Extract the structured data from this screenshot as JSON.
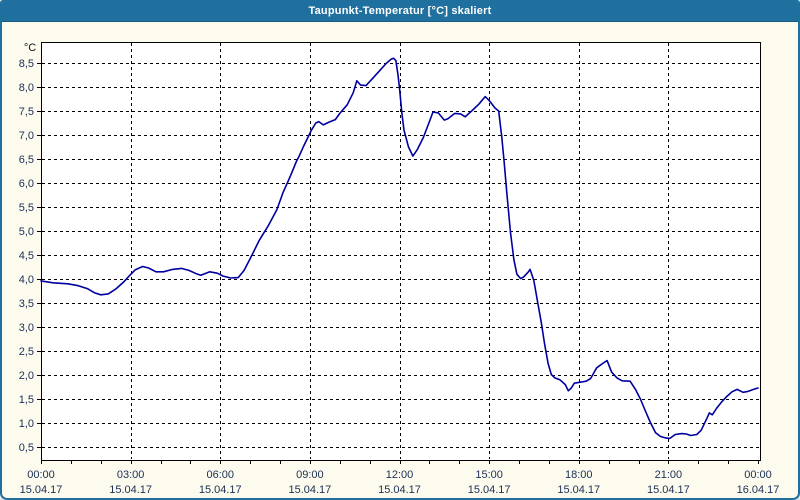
{
  "window": {
    "title": "Taupunkt-Temperatur [°C] skaliert"
  },
  "colors": {
    "titlebar_bg": "#20709F",
    "window_frame": "#1F6F9F",
    "window_bg": "#FCFBEE",
    "plot_bg": "#FFFFFF",
    "plot_border": "#000000",
    "grid": "#000000",
    "axis_text": "#1A2F55",
    "line": "#0000A0"
  },
  "chart_data": {
    "type": "line",
    "title": "Taupunkt-Temperatur [°C] skaliert",
    "ylabel": "°C",
    "grid": {
      "style": "dashed",
      "horizontal_every": 0.5,
      "vertical_every_hours": 3
    },
    "y_axis": {
      "min": 0.5,
      "max": 8.5,
      "step": 0.5,
      "decimal_separator": ",",
      "tick_labels": [
        "8,5",
        "8,0",
        "7,5",
        "7,0",
        "6,5",
        "6,0",
        "5,5",
        "5,0",
        "4,5",
        "4,0",
        "3,5",
        "3,0",
        "2,5",
        "2,0",
        "1,5",
        "1,0",
        "0,5"
      ]
    },
    "x_axis": {
      "span_hours": 24,
      "minor_tick_hours": 1,
      "major_tick_hours": 3,
      "ticks": [
        {
          "time": "00:00",
          "date": "15.04.17"
        },
        {
          "time": "03:00",
          "date": "15.04.17"
        },
        {
          "time": "06:00",
          "date": "15.04.17"
        },
        {
          "time": "09:00",
          "date": "15.04.17"
        },
        {
          "time": "12:00",
          "date": "15.04.17"
        },
        {
          "time": "15:00",
          "date": "15.04.17"
        },
        {
          "time": "18:00",
          "date": "15.04.17"
        },
        {
          "time": "21:00",
          "date": "15.04.17"
        },
        {
          "time": "00:00",
          "date": "16.04.17"
        }
      ]
    },
    "series": [
      {
        "name": "Taupunkt-Temperatur",
        "color": "#0000A0",
        "points_hour_value": [
          [
            0,
            3.96
          ],
          [
            0.4,
            3.92
          ],
          [
            0.9,
            3.9
          ],
          [
            1.25,
            3.86
          ],
          [
            1.55,
            3.8
          ],
          [
            1.8,
            3.71
          ],
          [
            2,
            3.67
          ],
          [
            2.25,
            3.69
          ],
          [
            2.5,
            3.79
          ],
          [
            2.75,
            3.93
          ],
          [
            2.95,
            4.06
          ],
          [
            3.15,
            4.19
          ],
          [
            3.4,
            4.26
          ],
          [
            3.6,
            4.23
          ],
          [
            3.85,
            4.15
          ],
          [
            4.1,
            4.15
          ],
          [
            4.4,
            4.2
          ],
          [
            4.7,
            4.22
          ],
          [
            4.95,
            4.18
          ],
          [
            5.2,
            4.11
          ],
          [
            5.35,
            4.08
          ],
          [
            5.65,
            4.15
          ],
          [
            5.9,
            4.12
          ],
          [
            6.1,
            4.06
          ],
          [
            6.35,
            4.02
          ],
          [
            6.6,
            4.03
          ],
          [
            6.8,
            4.18
          ],
          [
            7,
            4.42
          ],
          [
            7.3,
            4.8
          ],
          [
            7.6,
            5.1
          ],
          [
            7.9,
            5.45
          ],
          [
            8.1,
            5.8
          ],
          [
            8.35,
            6.15
          ],
          [
            8.55,
            6.45
          ],
          [
            8.65,
            6.57
          ],
          [
            8.8,
            6.78
          ],
          [
            8.95,
            6.97
          ],
          [
            9.05,
            7.1
          ],
          [
            9.2,
            7.25
          ],
          [
            9.3,
            7.28
          ],
          [
            9.45,
            7.21
          ],
          [
            9.65,
            7.27
          ],
          [
            9.85,
            7.32
          ],
          [
            10,
            7.45
          ],
          [
            10.25,
            7.63
          ],
          [
            10.45,
            7.88
          ],
          [
            10.57,
            8.13
          ],
          [
            10.7,
            8.04
          ],
          [
            10.88,
            8.03
          ],
          [
            11.1,
            8.18
          ],
          [
            11.35,
            8.35
          ],
          [
            11.55,
            8.49
          ],
          [
            11.72,
            8.58
          ],
          [
            11.8,
            8.6
          ],
          [
            11.88,
            8.55
          ],
          [
            11.95,
            8.25
          ],
          [
            12,
            7.98
          ],
          [
            12.08,
            7.45
          ],
          [
            12.15,
            7.1
          ],
          [
            12.3,
            6.75
          ],
          [
            12.45,
            6.56
          ],
          [
            12.6,
            6.7
          ],
          [
            12.8,
            6.95
          ],
          [
            13,
            7.28
          ],
          [
            13.12,
            7.48
          ],
          [
            13.3,
            7.46
          ],
          [
            13.5,
            7.31
          ],
          [
            13.62,
            7.34
          ],
          [
            13.85,
            7.45
          ],
          [
            14.05,
            7.44
          ],
          [
            14.2,
            7.38
          ],
          [
            14.45,
            7.52
          ],
          [
            14.65,
            7.64
          ],
          [
            14.87,
            7.8
          ],
          [
            15,
            7.72
          ],
          [
            15.1,
            7.64
          ],
          [
            15.2,
            7.56
          ],
          [
            15.32,
            7.5
          ],
          [
            15.42,
            6.97
          ],
          [
            15.5,
            6.45
          ],
          [
            15.6,
            5.75
          ],
          [
            15.72,
            4.95
          ],
          [
            15.83,
            4.4
          ],
          [
            15.93,
            4.1
          ],
          [
            16.05,
            4.01
          ],
          [
            16.15,
            4.04
          ],
          [
            16.3,
            4.14
          ],
          [
            16.37,
            4.2
          ],
          [
            16.5,
            3.96
          ],
          [
            16.63,
            3.5
          ],
          [
            16.75,
            3.08
          ],
          [
            16.85,
            2.67
          ],
          [
            16.97,
            2.25
          ],
          [
            17.08,
            2.01
          ],
          [
            17.2,
            1.94
          ],
          [
            17.37,
            1.9
          ],
          [
            17.55,
            1.8
          ],
          [
            17.65,
            1.67
          ],
          [
            17.75,
            1.73
          ],
          [
            17.85,
            1.83
          ],
          [
            18.05,
            1.85
          ],
          [
            18.25,
            1.87
          ],
          [
            18.4,
            1.93
          ],
          [
            18.6,
            2.15
          ],
          [
            18.8,
            2.24
          ],
          [
            18.95,
            2.3
          ],
          [
            19.1,
            2.06
          ],
          [
            19.28,
            1.94
          ],
          [
            19.45,
            1.88
          ],
          [
            19.72,
            1.87
          ],
          [
            19.9,
            1.7
          ],
          [
            20.07,
            1.49
          ],
          [
            20.23,
            1.25
          ],
          [
            20.4,
            1.01
          ],
          [
            20.57,
            0.8
          ],
          [
            20.73,
            0.72
          ],
          [
            20.9,
            0.69
          ],
          [
            21.05,
            0.68
          ],
          [
            21.23,
            0.76
          ],
          [
            21.45,
            0.78
          ],
          [
            21.6,
            0.77
          ],
          [
            21.75,
            0.74
          ],
          [
            21.95,
            0.76
          ],
          [
            22.1,
            0.85
          ],
          [
            22.3,
            1.11
          ],
          [
            22.37,
            1.21
          ],
          [
            22.47,
            1.17
          ],
          [
            22.63,
            1.32
          ],
          [
            22.8,
            1.45
          ],
          [
            22.97,
            1.56
          ],
          [
            23.13,
            1.65
          ],
          [
            23.3,
            1.7
          ],
          [
            23.5,
            1.64
          ],
          [
            23.68,
            1.66
          ],
          [
            23.85,
            1.7
          ],
          [
            24,
            1.73
          ]
        ]
      }
    ]
  }
}
